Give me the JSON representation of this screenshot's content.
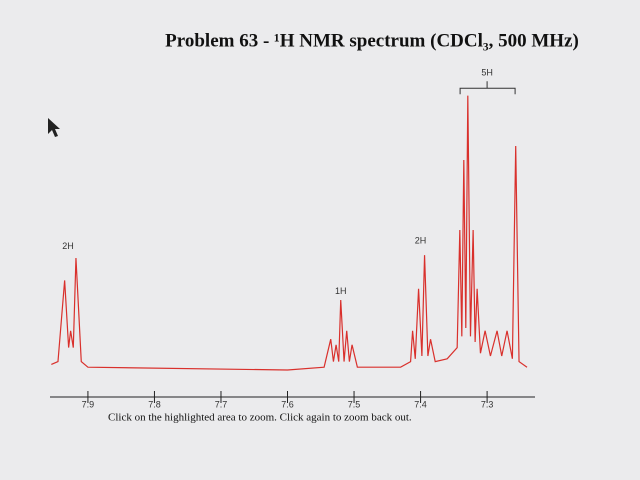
{
  "chart_data": {
    "type": "line",
    "title": "Problem 63 - ¹H NMR spectrum (CDCl₃, 500 MHz)",
    "caption": "Click on the highlighted area to zoom. Click again to zoom back out.",
    "color": "#d9302c",
    "x": [
      7.955,
      7.945,
      7.935,
      7.929,
      7.926,
      7.922,
      7.918,
      7.91,
      7.9,
      7.6,
      7.545,
      7.535,
      7.531,
      7.527,
      7.523,
      7.52,
      7.515,
      7.511,
      7.507,
      7.503,
      7.495,
      7.43,
      7.415,
      7.412,
      7.408,
      7.403,
      7.398,
      7.394,
      7.389,
      7.385,
      7.378,
      7.36,
      7.345,
      7.341,
      7.338,
      7.335,
      7.332,
      7.329,
      7.325,
      7.321,
      7.318,
      7.315,
      7.31,
      7.303,
      7.295,
      7.285,
      7.278,
      7.27,
      7.262,
      7.257,
      7.252,
      7.24
    ],
    "values": [
      2,
      3,
      32,
      8,
      14,
      8,
      40,
      3,
      1,
      0,
      1,
      11,
      3,
      9,
      3,
      25,
      3,
      14,
      3,
      9,
      1,
      1,
      3,
      14,
      4,
      29,
      5,
      41,
      5,
      11,
      3,
      4,
      8,
      50,
      12,
      75,
      15,
      98,
      12,
      50,
      10,
      29,
      6,
      14,
      5,
      14,
      5,
      14,
      4,
      80,
      3,
      1
    ],
    "xlim": [
      7.957,
      7.228
    ],
    "ylim": [
      0,
      100
    ],
    "xticks": [
      7.9,
      7.8,
      7.7,
      7.6,
      7.5,
      7.4,
      7.3
    ],
    "annotations": [
      {
        "text": "2H",
        "x": 7.93,
        "y": 44
      },
      {
        "text": "1H",
        "x": 7.52,
        "y": 28
      },
      {
        "text": "2H",
        "x": 7.4,
        "y": 46
      },
      {
        "text": "5H",
        "x": 7.3,
        "y": 106,
        "bracket": true
      }
    ]
  }
}
